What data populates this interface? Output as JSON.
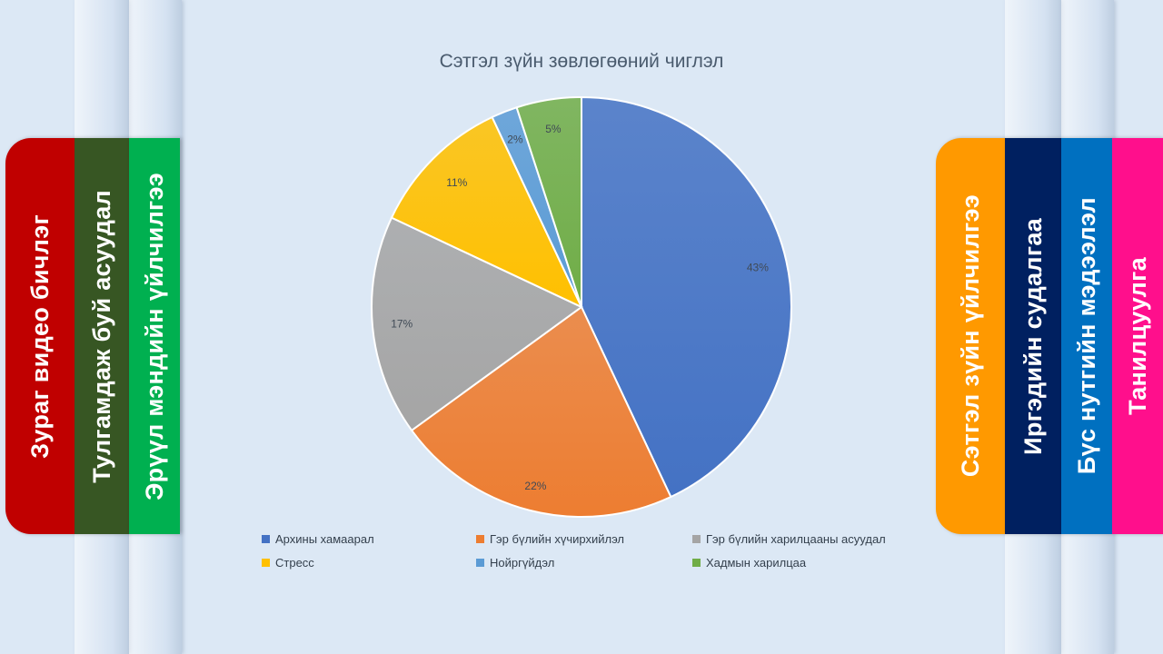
{
  "left_tabs": [
    {
      "label": "Зураг видео бичлэг",
      "color": "#c00000"
    },
    {
      "label": "Тулгамдаж буй асуудал",
      "color": "#375623"
    },
    {
      "label": "Эрүүл мэндийн үйлчилгээ",
      "color": "#00b050"
    }
  ],
  "right_tabs": [
    {
      "label": "Сэтгэл зүйн үйлчилгээ",
      "color": "#ff9900"
    },
    {
      "label": "Иргэдийн судалгаа",
      "color": "#002060"
    },
    {
      "label": "Бүс нутгийн мэдээлэл",
      "color": "#0070c0"
    },
    {
      "label": "Танилцуулга",
      "color": "#ff0f8c"
    }
  ],
  "chart_data": {
    "type": "pie",
    "title": "Сэтгэл зүйн зөвлөгөөний чиглэл",
    "start_angle_deg": 0,
    "direction": "clockwise",
    "legend_position": "bottom",
    "slices": [
      {
        "name": "Архины хамаарал",
        "value": 43,
        "label": "43%",
        "color": "#4472c4"
      },
      {
        "name": "Гэр бүлийн хүчирхийлэл",
        "value": 22,
        "label": "22%",
        "color": "#ed7d31"
      },
      {
        "name": "Гэр бүлийн харилцааны асуудал",
        "value": 17,
        "label": "17%",
        "color": "#a5a5a5"
      },
      {
        "name": "Стресс",
        "value": 11,
        "label": "11%",
        "color": "#ffc000"
      },
      {
        "name": "Нойргүйдэл",
        "value": 2,
        "label": "2%",
        "color": "#5b9bd5"
      },
      {
        "name": "Хадмын харилцаа",
        "value": 5,
        "label": "5%",
        "color": "#70ad47"
      }
    ]
  }
}
